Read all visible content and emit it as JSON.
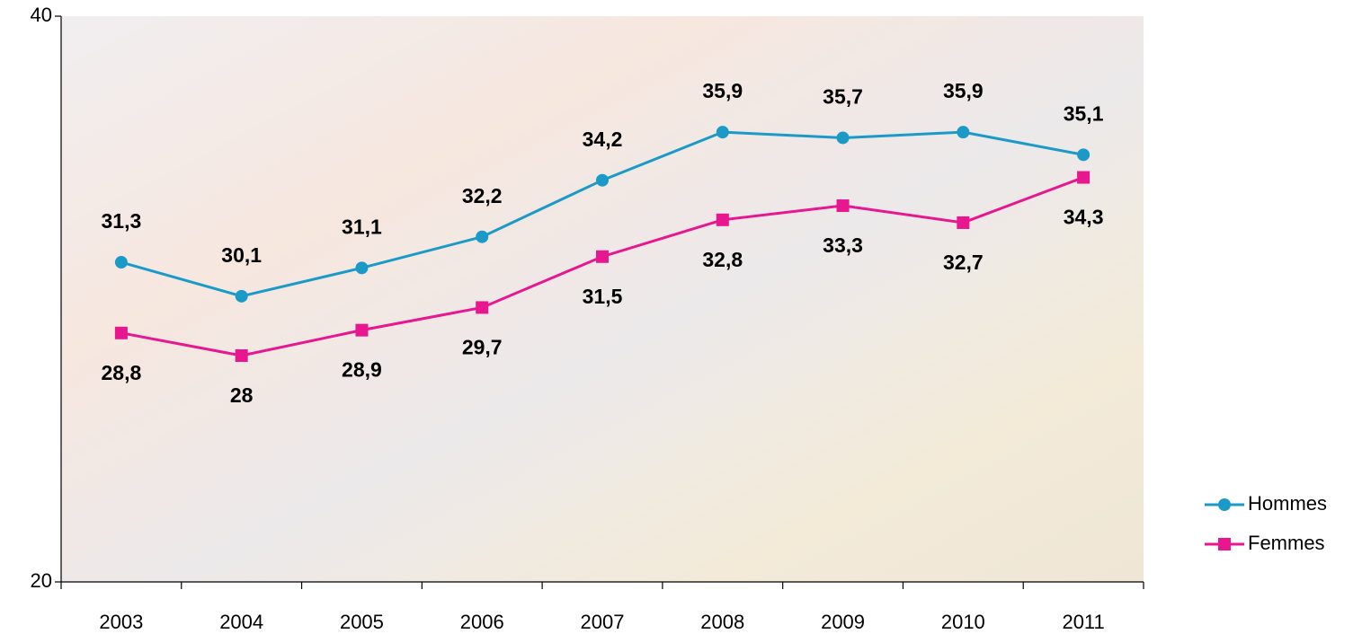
{
  "chart_data": {
    "type": "line",
    "categories": [
      "2003",
      "2004",
      "2005",
      "2006",
      "2007",
      "2008",
      "2009",
      "2010",
      "2011"
    ],
    "series": [
      {
        "name": "Hommes",
        "color": "#1b9ac8",
        "marker": "circle",
        "values": [
          31.3,
          30.1,
          31.1,
          32.2,
          34.2,
          35.9,
          35.7,
          35.9,
          35.1
        ],
        "value_labels": [
          "31,3",
          "30,1",
          "31,1",
          "32,2",
          "34,2",
          "35,9",
          "35,7",
          "35,9",
          "35,1"
        ]
      },
      {
        "name": "Femmes",
        "color": "#e8168f",
        "marker": "square",
        "values": [
          28.8,
          28,
          28.9,
          29.7,
          31.5,
          32.8,
          33.3,
          32.7,
          34.3
        ],
        "value_labels": [
          "28,8",
          "28",
          "28,9",
          "29,7",
          "31,5",
          "32,8",
          "33,3",
          "32,7",
          "34,3"
        ]
      }
    ],
    "ylim": [
      20,
      40
    ],
    "yticks": [
      20,
      40
    ],
    "legend": "right"
  }
}
